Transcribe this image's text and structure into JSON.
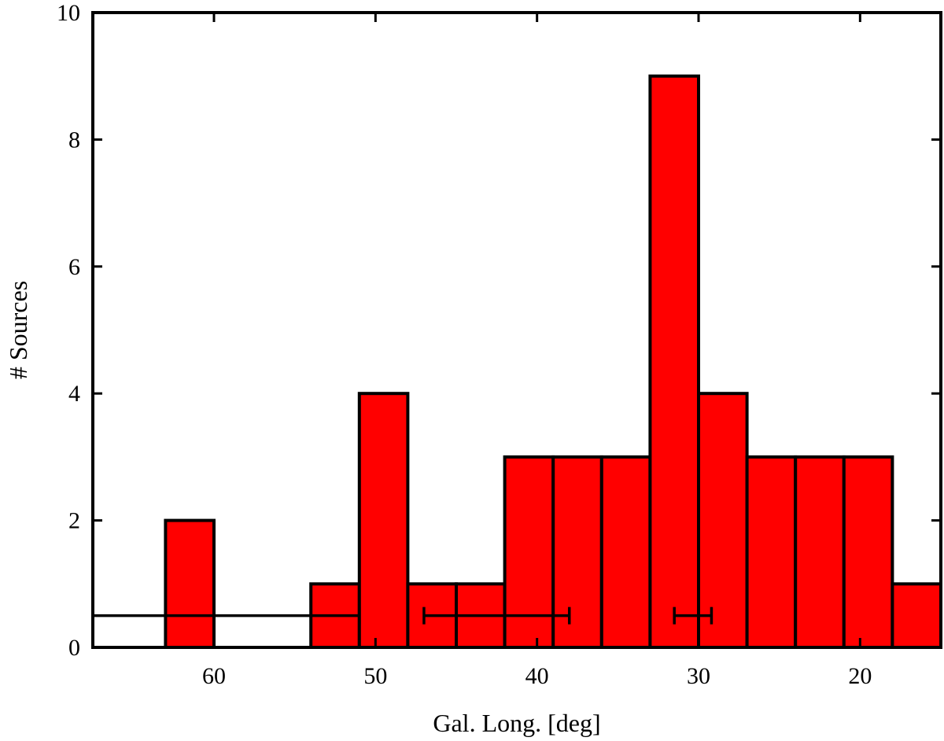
{
  "chart_data": {
    "type": "bar",
    "title": "",
    "xlabel": "Gal. Long. [deg]",
    "ylabel": "# Sources",
    "x_reversed": true,
    "xlim": [
      67.5,
      15
    ],
    "ylim": [
      0,
      10
    ],
    "bin_width": 3,
    "x_ticks": [
      60,
      50,
      40,
      30,
      20
    ],
    "y_ticks": [
      0,
      2,
      4,
      6,
      8,
      10
    ],
    "bar_color": "#ff0000",
    "edge_color": "#000000",
    "grid": false,
    "bins": [
      {
        "x": 61.5,
        "value": 2
      },
      {
        "x": 52.5,
        "value": 1
      },
      {
        "x": 49.5,
        "value": 4
      },
      {
        "x": 46.5,
        "value": 1
      },
      {
        "x": 43.5,
        "value": 1
      },
      {
        "x": 40.5,
        "value": 3
      },
      {
        "x": 37.5,
        "value": 3
      },
      {
        "x": 34.5,
        "value": 3
      },
      {
        "x": 31.5,
        "value": 9
      },
      {
        "x": 28.5,
        "value": 4
      },
      {
        "x": 25.5,
        "value": 3
      },
      {
        "x": 22.5,
        "value": 3
      },
      {
        "x": 19.5,
        "value": 3
      },
      {
        "x": 16.5,
        "value": 1
      }
    ],
    "error_bars": [
      {
        "y": 0.5,
        "x_low": 51.0,
        "x_high": 67.5,
        "left_cap": false,
        "right_cap": true
      },
      {
        "y": 0.5,
        "x_low": 38.0,
        "x_high": 47.0,
        "left_cap": true,
        "right_cap": true
      },
      {
        "y": 0.5,
        "x_low": 29.2,
        "x_high": 31.5,
        "left_cap": true,
        "right_cap": true
      }
    ]
  }
}
